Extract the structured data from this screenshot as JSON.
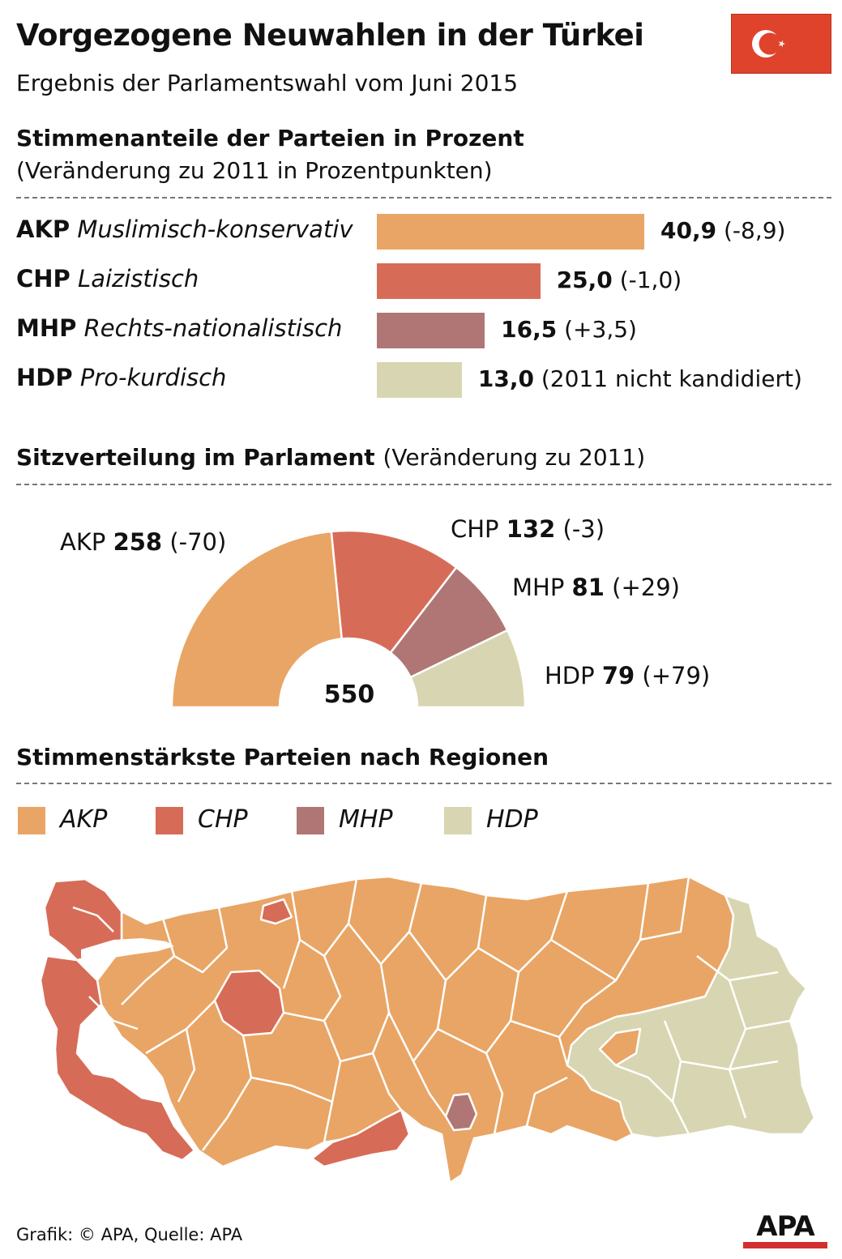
{
  "header": {
    "title": "Vorgezogene Neuwahlen in der Türkei",
    "subtitle": "Ergebnis der Parlamentswahl vom Juni 2015"
  },
  "colors": {
    "AKP": "#e9a565",
    "CHP": "#d66c57",
    "MHP": "#b07676",
    "HDP": "#d8d6b2"
  },
  "chart_data": [
    {
      "type": "bar",
      "title": "Stimmenanteile der Parteien in Prozent",
      "subtitle": "(Veränderung zu 2011 in Prozentpunkten)",
      "xlim": [
        0,
        45
      ],
      "categories": [
        "AKP",
        "CHP",
        "MHP",
        "HDP"
      ],
      "descriptions": [
        "Muslimisch-konservativ",
        "Laizistisch",
        "Rechts-nationalistisch",
        "Pro-kurdisch"
      ],
      "values": [
        40.9,
        25.0,
        16.5,
        13.0
      ],
      "value_labels": [
        "40,9",
        "25,0",
        "16,5",
        "13,0"
      ],
      "change_labels": [
        "(-8,9)",
        "(-1,0)",
        "(+3,5)",
        "(2011 nicht kandidiert)"
      ]
    },
    {
      "type": "pie",
      "variant": "half-donut",
      "title": "Sitzverteilung im Parlament",
      "title_note": "(Veränderung zu 2011)",
      "total": 550,
      "total_label": "550",
      "categories": [
        "AKP",
        "CHP",
        "MHP",
        "HDP"
      ],
      "values": [
        258,
        132,
        81,
        79
      ],
      "value_labels": [
        "258",
        "132",
        "81",
        "79"
      ],
      "change_labels": [
        "(-70)",
        "(-3)",
        "(+29)",
        "(+79)"
      ]
    }
  ],
  "map": {
    "title": "Stimmenstärkste Parteien nach Regionen",
    "legend": [
      "AKP",
      "CHP",
      "MHP",
      "HDP"
    ]
  },
  "footer": {
    "credit": "Grafik: © APA, Quelle: APA",
    "logo": "APA"
  }
}
